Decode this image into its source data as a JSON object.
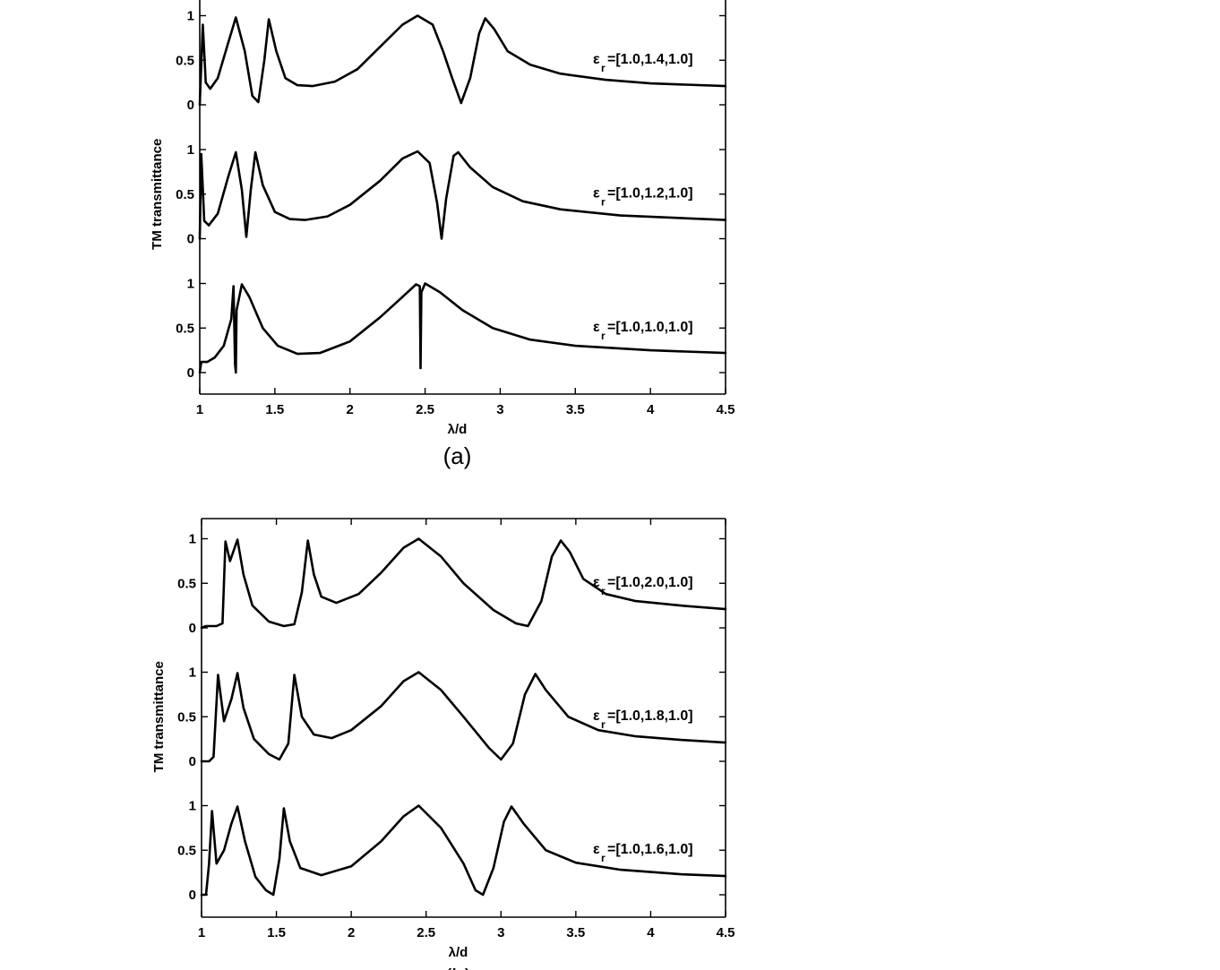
{
  "chart_data": [
    {
      "type": "line",
      "panel_label": "(a)",
      "xlabel": "λ/d",
      "ylabel": "TM transmittance",
      "xlim": [
        1,
        4.5
      ],
      "xticks": [
        "1",
        "1.5",
        "2",
        "2.5",
        "3",
        "3.5",
        "4",
        "4.5"
      ],
      "yticks": [
        "0",
        "0.5",
        "1"
      ],
      "grid": false,
      "stacked_ylim_each": [
        0,
        1
      ],
      "series": [
        {
          "label_sym": "ε",
          "label_sub": "r",
          "label_val": "=[1.0,1.4,1.0]",
          "points": [
            [
              1.0,
              0.0
            ],
            [
              1.02,
              0.9
            ],
            [
              1.04,
              0.25
            ],
            [
              1.07,
              0.18
            ],
            [
              1.12,
              0.3
            ],
            [
              1.19,
              0.7
            ],
            [
              1.24,
              0.98
            ],
            [
              1.3,
              0.6
            ],
            [
              1.35,
              0.1
            ],
            [
              1.39,
              0.03
            ],
            [
              1.43,
              0.5
            ],
            [
              1.46,
              0.96
            ],
            [
              1.51,
              0.6
            ],
            [
              1.57,
              0.3
            ],
            [
              1.65,
              0.22
            ],
            [
              1.75,
              0.21
            ],
            [
              1.9,
              0.26
            ],
            [
              2.05,
              0.4
            ],
            [
              2.2,
              0.65
            ],
            [
              2.35,
              0.9
            ],
            [
              2.45,
              1.0
            ],
            [
              2.55,
              0.9
            ],
            [
              2.62,
              0.6
            ],
            [
              2.68,
              0.3
            ],
            [
              2.74,
              0.02
            ],
            [
              2.8,
              0.3
            ],
            [
              2.86,
              0.8
            ],
            [
              2.9,
              0.97
            ],
            [
              2.96,
              0.85
            ],
            [
              3.05,
              0.6
            ],
            [
              3.2,
              0.45
            ],
            [
              3.4,
              0.35
            ],
            [
              3.7,
              0.28
            ],
            [
              4.0,
              0.24
            ],
            [
              4.5,
              0.21
            ]
          ]
        },
        {
          "label_sym": "ε",
          "label_sub": "r",
          "label_val": "=[1.0,1.2,1.0]",
          "points": [
            [
              1.0,
              0.0
            ],
            [
              1.01,
              0.95
            ],
            [
              1.03,
              0.2
            ],
            [
              1.06,
              0.15
            ],
            [
              1.12,
              0.28
            ],
            [
              1.19,
              0.7
            ],
            [
              1.24,
              0.97
            ],
            [
              1.28,
              0.55
            ],
            [
              1.31,
              0.02
            ],
            [
              1.34,
              0.55
            ],
            [
              1.37,
              0.97
            ],
            [
              1.42,
              0.6
            ],
            [
              1.5,
              0.3
            ],
            [
              1.6,
              0.22
            ],
            [
              1.7,
              0.21
            ],
            [
              1.85,
              0.25
            ],
            [
              2.0,
              0.38
            ],
            [
              2.2,
              0.65
            ],
            [
              2.35,
              0.9
            ],
            [
              2.45,
              0.98
            ],
            [
              2.53,
              0.85
            ],
            [
              2.58,
              0.4
            ],
            [
              2.61,
              0.0
            ],
            [
              2.64,
              0.45
            ],
            [
              2.69,
              0.93
            ],
            [
              2.72,
              0.97
            ],
            [
              2.8,
              0.8
            ],
            [
              2.95,
              0.58
            ],
            [
              3.15,
              0.42
            ],
            [
              3.4,
              0.33
            ],
            [
              3.8,
              0.26
            ],
            [
              4.5,
              0.21
            ]
          ]
        },
        {
          "label_sym": "ε",
          "label_sub": "r",
          "label_val": "=[1.0,1.0,1.0]",
          "points": [
            [
              1.0,
              0.0
            ],
            [
              1.01,
              0.12
            ],
            [
              1.05,
              0.12
            ],
            [
              1.1,
              0.17
            ],
            [
              1.16,
              0.3
            ],
            [
              1.21,
              0.6
            ],
            [
              1.225,
              0.97
            ],
            [
              1.235,
              0.1
            ],
            [
              1.24,
              0.0
            ],
            [
              1.245,
              0.7
            ],
            [
              1.28,
              0.99
            ],
            [
              1.33,
              0.85
            ],
            [
              1.42,
              0.5
            ],
            [
              1.52,
              0.3
            ],
            [
              1.65,
              0.21
            ],
            [
              1.8,
              0.22
            ],
            [
              2.0,
              0.35
            ],
            [
              2.2,
              0.62
            ],
            [
              2.35,
              0.85
            ],
            [
              2.44,
              0.99
            ],
            [
              2.465,
              0.97
            ],
            [
              2.47,
              0.05
            ],
            [
              2.475,
              0.9
            ],
            [
              2.5,
              1.0
            ],
            [
              2.6,
              0.9
            ],
            [
              2.75,
              0.7
            ],
            [
              2.95,
              0.5
            ],
            [
              3.2,
              0.37
            ],
            [
              3.5,
              0.3
            ],
            [
              4.0,
              0.25
            ],
            [
              4.5,
              0.22
            ]
          ]
        }
      ]
    },
    {
      "type": "line",
      "panel_label": "(b)",
      "xlabel": "λ/d",
      "ylabel": "TM transmittance",
      "xlim": [
        1,
        4.5
      ],
      "xticks": [
        "1",
        "1.5",
        "2",
        "2.5",
        "3",
        "3.5",
        "4",
        "4.5"
      ],
      "yticks": [
        "0",
        "0.5",
        "1"
      ],
      "grid": false,
      "stacked_ylim_each": [
        0,
        1
      ],
      "series": [
        {
          "label_sym": "ε",
          "label_sub": "r",
          "label_val": "=[1.0,2.0,1.0]",
          "points": [
            [
              1.0,
              0.0
            ],
            [
              1.03,
              0.02
            ],
            [
              1.1,
              0.02
            ],
            [
              1.14,
              0.05
            ],
            [
              1.16,
              0.97
            ],
            [
              1.19,
              0.75
            ],
            [
              1.24,
              0.99
            ],
            [
              1.28,
              0.6
            ],
            [
              1.34,
              0.25
            ],
            [
              1.45,
              0.07
            ],
            [
              1.55,
              0.02
            ],
            [
              1.62,
              0.04
            ],
            [
              1.67,
              0.4
            ],
            [
              1.71,
              0.98
            ],
            [
              1.75,
              0.6
            ],
            [
              1.8,
              0.35
            ],
            [
              1.9,
              0.28
            ],
            [
              2.05,
              0.38
            ],
            [
              2.2,
              0.62
            ],
            [
              2.35,
              0.9
            ],
            [
              2.45,
              1.0
            ],
            [
              2.6,
              0.8
            ],
            [
              2.75,
              0.5
            ],
            [
              2.95,
              0.2
            ],
            [
              3.1,
              0.05
            ],
            [
              3.18,
              0.02
            ],
            [
              3.27,
              0.3
            ],
            [
              3.34,
              0.8
            ],
            [
              3.4,
              0.98
            ],
            [
              3.46,
              0.85
            ],
            [
              3.55,
              0.55
            ],
            [
              3.7,
              0.38
            ],
            [
              3.9,
              0.3
            ],
            [
              4.2,
              0.25
            ],
            [
              4.5,
              0.21
            ]
          ]
        },
        {
          "label_sym": "ε",
          "label_sub": "r",
          "label_val": "=[1.0,1.8,1.0]",
          "points": [
            [
              1.0,
              0.0
            ],
            [
              1.05,
              0.0
            ],
            [
              1.08,
              0.05
            ],
            [
              1.11,
              0.97
            ],
            [
              1.15,
              0.45
            ],
            [
              1.2,
              0.7
            ],
            [
              1.24,
              0.99
            ],
            [
              1.28,
              0.6
            ],
            [
              1.35,
              0.25
            ],
            [
              1.45,
              0.08
            ],
            [
              1.52,
              0.02
            ],
            [
              1.58,
              0.2
            ],
            [
              1.62,
              0.97
            ],
            [
              1.67,
              0.5
            ],
            [
              1.75,
              0.3
            ],
            [
              1.87,
              0.26
            ],
            [
              2.0,
              0.35
            ],
            [
              2.2,
              0.62
            ],
            [
              2.35,
              0.9
            ],
            [
              2.45,
              1.0
            ],
            [
              2.6,
              0.8
            ],
            [
              2.75,
              0.5
            ],
            [
              2.92,
              0.15
            ],
            [
              3.0,
              0.02
            ],
            [
              3.08,
              0.2
            ],
            [
              3.16,
              0.75
            ],
            [
              3.23,
              0.98
            ],
            [
              3.3,
              0.8
            ],
            [
              3.45,
              0.5
            ],
            [
              3.65,
              0.35
            ],
            [
              3.9,
              0.28
            ],
            [
              4.2,
              0.24
            ],
            [
              4.5,
              0.21
            ]
          ]
        },
        {
          "label_sym": "ε",
          "label_sub": "r",
          "label_val": "=[1.0,1.6,1.0]",
          "points": [
            [
              1.0,
              0.0
            ],
            [
              1.03,
              0.0
            ],
            [
              1.05,
              0.35
            ],
            [
              1.07,
              0.94
            ],
            [
              1.1,
              0.35
            ],
            [
              1.15,
              0.5
            ],
            [
              1.2,
              0.8
            ],
            [
              1.24,
              0.99
            ],
            [
              1.29,
              0.6
            ],
            [
              1.36,
              0.2
            ],
            [
              1.43,
              0.05
            ],
            [
              1.48,
              0.0
            ],
            [
              1.52,
              0.4
            ],
            [
              1.55,
              0.97
            ],
            [
              1.59,
              0.6
            ],
            [
              1.66,
              0.3
            ],
            [
              1.8,
              0.22
            ],
            [
              2.0,
              0.32
            ],
            [
              2.2,
              0.6
            ],
            [
              2.35,
              0.88
            ],
            [
              2.45,
              1.0
            ],
            [
              2.6,
              0.75
            ],
            [
              2.75,
              0.35
            ],
            [
              2.83,
              0.05
            ],
            [
              2.88,
              0.0
            ],
            [
              2.95,
              0.3
            ],
            [
              3.02,
              0.82
            ],
            [
              3.07,
              0.99
            ],
            [
              3.15,
              0.8
            ],
            [
              3.3,
              0.5
            ],
            [
              3.5,
              0.36
            ],
            [
              3.8,
              0.28
            ],
            [
              4.2,
              0.23
            ],
            [
              4.5,
              0.21
            ]
          ]
        }
      ]
    }
  ]
}
